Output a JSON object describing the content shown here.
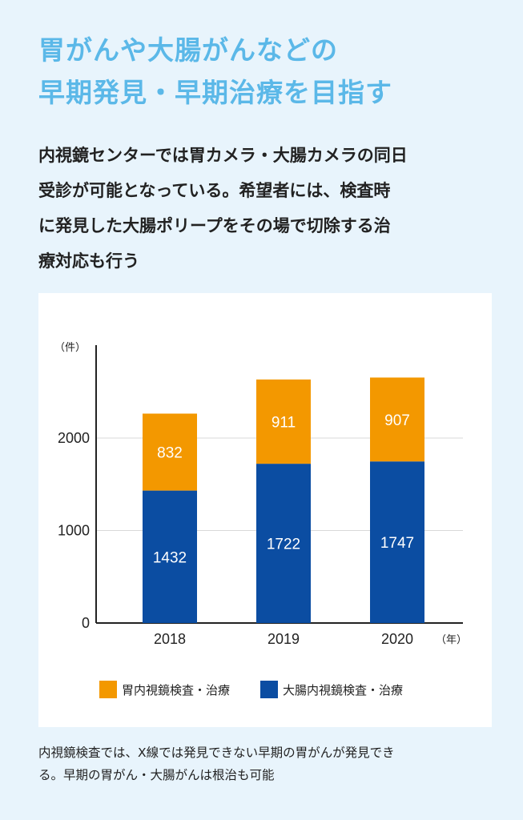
{
  "headline": {
    "line1": "胃がんや大腸がんなどの",
    "line2": "早期発見・早期治療を目指す"
  },
  "lead": {
    "line1": "内視鏡センターでは胃カメラ・大腸カメラの同日",
    "line2": "受診が可能となっている。希望者には、検査時",
    "line3": "に発見した大腸ポリープをその場で切除する治",
    "line4": "療対応も行う"
  },
  "caption": {
    "line1": "内視鏡検査では、X線では発見できない早期の胃がんが発見でき",
    "line2": "る。早期の胃がん・大腸がんは根治も可能"
  },
  "chart_data": {
    "type": "bar",
    "stacked": true,
    "categories": [
      "2018",
      "2019",
      "2020"
    ],
    "series": [
      {
        "name": "大腸内視鏡検査・治療",
        "values": [
          1432,
          1722,
          1747
        ],
        "color": "#0b4da2"
      },
      {
        "name": "胃内視鏡検査・治療",
        "values": [
          832,
          911,
          907
        ],
        "color": "#f39800"
      }
    ],
    "ylabel": "（件）",
    "xlabel": "（年）",
    "yticks": [
      0,
      1000,
      2000
    ],
    "ylim": [
      0,
      3000
    ],
    "grid": true,
    "legend_position": "bottom",
    "legend_order": [
      "胃内視鏡検査・治療",
      "大腸内視鏡検査・治療"
    ]
  }
}
